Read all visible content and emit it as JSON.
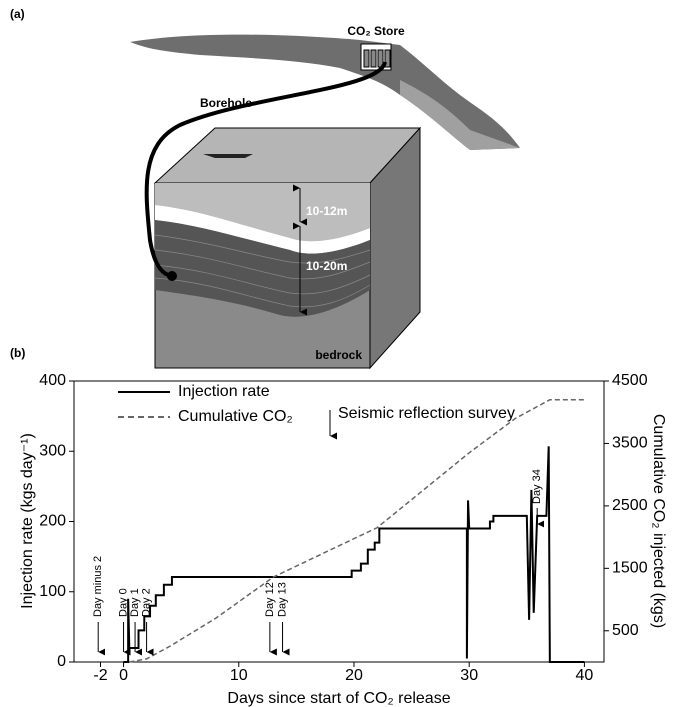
{
  "diagram": {
    "label": "(a)",
    "store": "CO₂ Store",
    "borehole": "Borehole",
    "upper_depth": "10-12m",
    "lower_depth": "10-20m",
    "bedrock": "bedrock"
  },
  "chart_data": {
    "type": "line",
    "panel_label": "(b)",
    "xlabel": "Days since start of CO₂ release",
    "ylabel": "Injection rate (kgs day⁻¹)",
    "y2label": "Cumulative CO₂ injected (kgs)",
    "xlim": [
      -4.3,
      41.7
    ],
    "xticks": [
      -2,
      0,
      10,
      20,
      30,
      40
    ],
    "ylim": [
      0,
      400
    ],
    "yticks": [
      0,
      100,
      200,
      300,
      400
    ],
    "y2lim": [
      0,
      4500
    ],
    "y2ticks": [
      500,
      1500,
      2500,
      3500,
      4500
    ],
    "series": [
      {
        "name": "Injection rate",
        "color": "#000000",
        "style": "solid",
        "x": [
          0,
          0.4,
          0.4,
          0.5,
          1.3,
          1.3,
          1.8,
          1.8,
          2.3,
          2.3,
          2.8,
          2.8,
          3.5,
          3.5,
          4.2,
          4.2,
          19.8,
          19.8,
          20.6,
          20.6,
          21.2,
          21.2,
          21.8,
          21.8,
          22.2,
          22.2,
          29.8,
          29.8,
          29.9,
          30,
          31.8,
          31.8,
          32.1,
          32.1,
          35,
          35.2,
          35.4,
          35.6,
          35.9,
          36.7,
          36.9,
          37,
          40
        ],
        "values": [
          0,
          0,
          90,
          20,
          20,
          45,
          45,
          65,
          65,
          80,
          80,
          95,
          95,
          110,
          110,
          121,
          121,
          130,
          130,
          140,
          140,
          160,
          160,
          170,
          170,
          190,
          190,
          5,
          230,
          190,
          190,
          200,
          200,
          208,
          208,
          60,
          245,
          70,
          208,
          208,
          307,
          0,
          0
        ]
      },
      {
        "name": "Cumulative CO₂",
        "color": "#666666",
        "style": "dashed",
        "axis": "y2",
        "x": [
          0.5,
          2,
          4,
          8,
          13,
          18,
          22,
          26,
          30,
          34,
          37,
          40
        ],
        "values": [
          0,
          50,
          250,
          700,
          1360,
          1800,
          2150,
          2750,
          3350,
          3900,
          4200,
          4200
        ]
      }
    ],
    "annotations": [
      {
        "text": "Day minus 2",
        "x": -2.2
      },
      {
        "text": "Day 0",
        "x": 0
      },
      {
        "text": "Day 1",
        "x": 1
      },
      {
        "text": "Day 2",
        "x": 2
      },
      {
        "text": "Day 12",
        "x": 12.7
      },
      {
        "text": "Day 13",
        "x": 13.8
      },
      {
        "text": "Day 34",
        "x": 35.9
      }
    ],
    "survey_note": "Seismic reflection survey"
  }
}
